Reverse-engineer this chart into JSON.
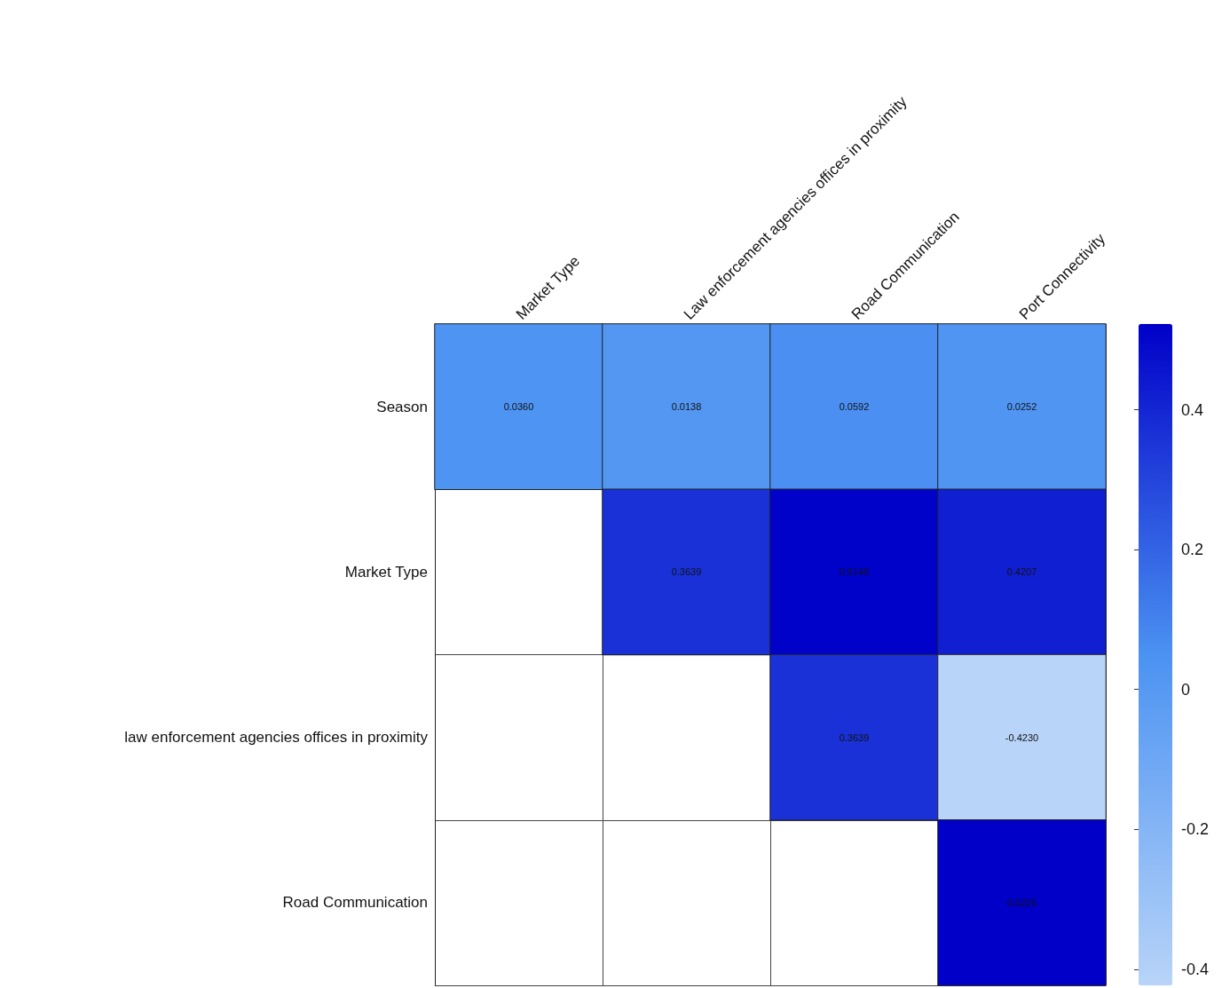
{
  "chart_data": {
    "type": "heatmap",
    "categories": [
      "Market Type",
      "Law enforcement agencies offices in proximity",
      "Road Communication",
      "Port Connectivity"
    ],
    "y_categories": [
      "Season",
      "Market Type",
      "law enforcement agencies offices in proximity",
      "Road Communication"
    ],
    "cells": [
      [
        0.036,
        0.0138,
        0.0592,
        0.0252
      ],
      [
        null,
        0.3639,
        0.5146,
        0.4207
      ],
      [
        null,
        null,
        0.3639,
        -0.423
      ],
      [
        null,
        null,
        null,
        0.5225
      ]
    ],
    "cell_labels": [
      [
        "0.0360",
        "0.0138",
        "0.0592",
        "0.0252"
      ],
      [
        null,
        "0.3639",
        "0.5146",
        "0.4207"
      ],
      [
        null,
        null,
        "0.3639",
        "-0.4230"
      ],
      [
        null,
        null,
        null,
        "0.5225"
      ]
    ],
    "clim": [
      -0.423,
      0.5225
    ],
    "cticks": [
      -0.4,
      -0.2,
      0,
      0.2,
      0.4
    ],
    "colors": [
      "#b8d4f8",
      "#4b92f2",
      "#0000c8"
    ],
    "data_labels": true
  }
}
